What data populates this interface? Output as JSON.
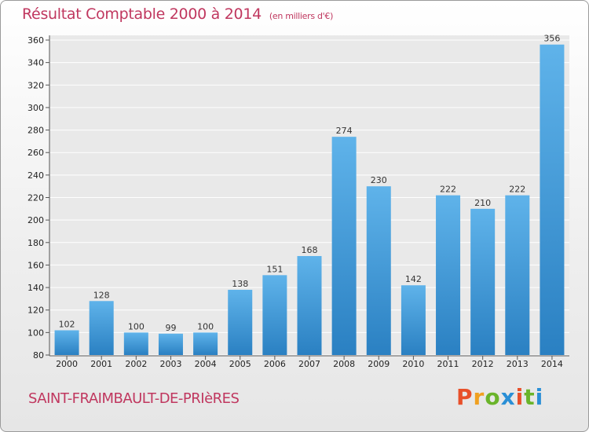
{
  "header": {
    "title": "Résultat Comptable 2000 à 2014",
    "subtitle": "(en milliers d'€)"
  },
  "footer": {
    "commune": "SAINT-FRAIMBAULT-DE-PRIèRES",
    "logo_text": "Proxiti"
  },
  "colors": {
    "title": "#c0375f",
    "bar_light": "#5aaee6",
    "bar_dark": "#2a7fc0",
    "grid": "#ffffff",
    "logo_letters": [
      "#e8502a",
      "#f0a020",
      "#6ab42a",
      "#2a8fd6",
      "#e8502a",
      "#6ab42a",
      "#2a8fd6"
    ]
  },
  "chart_data": {
    "type": "bar",
    "title": "Résultat Comptable 2000 à 2014",
    "subtitle": "(en milliers d'€)",
    "xlabel": "",
    "ylabel": "",
    "categories": [
      "2000",
      "2001",
      "2002",
      "2003",
      "2004",
      "2005",
      "2006",
      "2007",
      "2008",
      "2009",
      "2010",
      "2011",
      "2012",
      "2013",
      "2014"
    ],
    "values": [
      102,
      128,
      100,
      99,
      100,
      138,
      151,
      168,
      274,
      230,
      142,
      222,
      210,
      222,
      356
    ],
    "ylim": [
      80,
      360
    ],
    "yticks": [
      80,
      100,
      120,
      140,
      160,
      180,
      200,
      220,
      240,
      260,
      280,
      300,
      320,
      340,
      360
    ],
    "grid": true,
    "legend": "none"
  }
}
